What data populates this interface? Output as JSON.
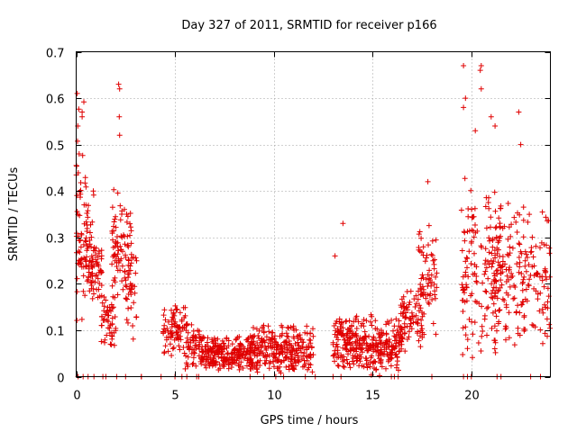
{
  "chart_data": {
    "type": "scatter",
    "title": "Day 327 of 2011, SRMTID for receiver p166",
    "xlabel": "GPS time / hours",
    "ylabel": "SRMTID / TECUs",
    "xlim": [
      0,
      24
    ],
    "ylim": [
      0,
      0.7
    ],
    "x_ticks": [
      0,
      5,
      10,
      15,
      20
    ],
    "x_tick_labels": [
      "0",
      "5",
      "10",
      "15",
      "20"
    ],
    "y_ticks": [
      0,
      0.1,
      0.2,
      0.3,
      0.4,
      0.5,
      0.6,
      0.7
    ],
    "y_tick_labels": [
      "0",
      "0.1",
      "0.2",
      "0.3",
      "0.4",
      "0.5",
      "0.6",
      "0.7"
    ],
    "grid": true,
    "marker": "+",
    "marker_color": "#e00000",
    "series": [
      {
        "name": "SRMTID",
        "color": "#e00000",
        "clusters": [
          {
            "x_range": [
              0.0,
              0.6
            ],
            "y_range": [
              0.1,
              0.6
            ],
            "count": 40
          },
          {
            "x_range": [
              0.1,
              0.9
            ],
            "y_range": [
              0.15,
              0.45
            ],
            "count": 50
          },
          {
            "x_range": [
              0.6,
              1.3
            ],
            "y_range": [
              0.15,
              0.3
            ],
            "count": 60
          },
          {
            "x_range": [
              1.2,
              2.0
            ],
            "y_range": [
              0.06,
              0.18
            ],
            "count": 50
          },
          {
            "x_range": [
              1.8,
              2.8
            ],
            "y_range": [
              0.15,
              0.42
            ],
            "count": 90
          },
          {
            "x_range": [
              2.5,
              3.1
            ],
            "y_range": [
              0.07,
              0.3
            ],
            "count": 30
          },
          {
            "x_range": [
              4.4,
              5.6
            ],
            "y_range": [
              0.04,
              0.16
            ],
            "count": 90
          },
          {
            "x_range": [
              5.5,
              6.3
            ],
            "y_range": [
              0.01,
              0.12
            ],
            "count": 50
          },
          {
            "x_range": [
              6.3,
              9.0
            ],
            "y_range": [
              0.01,
              0.09
            ],
            "count": 240
          },
          {
            "x_range": [
              8.8,
              12.0
            ],
            "y_range": [
              0.0,
              0.12
            ],
            "count": 280
          },
          {
            "x_range": [
              13.0,
              15.0
            ],
            "y_range": [
              0.0,
              0.14
            ],
            "count": 200
          },
          {
            "x_range": [
              15.0,
              16.5
            ],
            "y_range": [
              0.0,
              0.13
            ],
            "count": 140
          },
          {
            "x_range": [
              16.4,
              17.6
            ],
            "y_range": [
              0.05,
              0.2
            ],
            "count": 80
          },
          {
            "x_range": [
              17.3,
              18.3
            ],
            "y_range": [
              0.08,
              0.34
            ],
            "count": 60
          },
          {
            "x_range": [
              19.5,
              21.5
            ],
            "y_range": [
              0.0,
              0.45
            ],
            "count": 150
          },
          {
            "x_range": [
              21.0,
              24.0
            ],
            "y_range": [
              0.05,
              0.38
            ],
            "count": 200
          }
        ],
        "notable_points": [
          {
            "x": 0.05,
            "y": 0.61
          },
          {
            "x": 0.08,
            "y": 0.54
          },
          {
            "x": 0.3,
            "y": 0.57
          },
          {
            "x": 0.3,
            "y": 0.56
          },
          {
            "x": 0.15,
            "y": 0.48
          },
          {
            "x": 2.15,
            "y": 0.63
          },
          {
            "x": 2.2,
            "y": 0.62
          },
          {
            "x": 2.18,
            "y": 0.56
          },
          {
            "x": 2.2,
            "y": 0.52
          },
          {
            "x": 19.6,
            "y": 0.67
          },
          {
            "x": 20.5,
            "y": 0.67
          },
          {
            "x": 20.45,
            "y": 0.66
          },
          {
            "x": 20.5,
            "y": 0.62
          },
          {
            "x": 19.6,
            "y": 0.58
          },
          {
            "x": 19.7,
            "y": 0.6
          },
          {
            "x": 21.0,
            "y": 0.56
          },
          {
            "x": 22.4,
            "y": 0.57
          },
          {
            "x": 21.2,
            "y": 0.54
          },
          {
            "x": 20.2,
            "y": 0.53
          },
          {
            "x": 22.5,
            "y": 0.5
          },
          {
            "x": 13.1,
            "y": 0.26
          },
          {
            "x": 13.5,
            "y": 0.33
          },
          {
            "x": 17.8,
            "y": 0.42
          },
          {
            "x": 3.3,
            "y": 0.0
          }
        ],
        "zero_points_x": [
          0.1,
          0.35,
          0.6,
          0.9,
          1.35,
          1.5,
          2.05,
          2.5,
          3.3,
          4.3,
          5.0,
          5.35,
          5.6,
          6.1,
          6.2,
          8.8,
          9.5,
          10.1,
          10.5,
          11.6,
          12.1,
          13.0,
          13.4,
          15.95,
          16.1,
          16.3,
          18.0,
          19.6,
          19.8,
          20.0,
          21.3,
          21.5,
          23.0,
          23.5
        ]
      }
    ]
  }
}
